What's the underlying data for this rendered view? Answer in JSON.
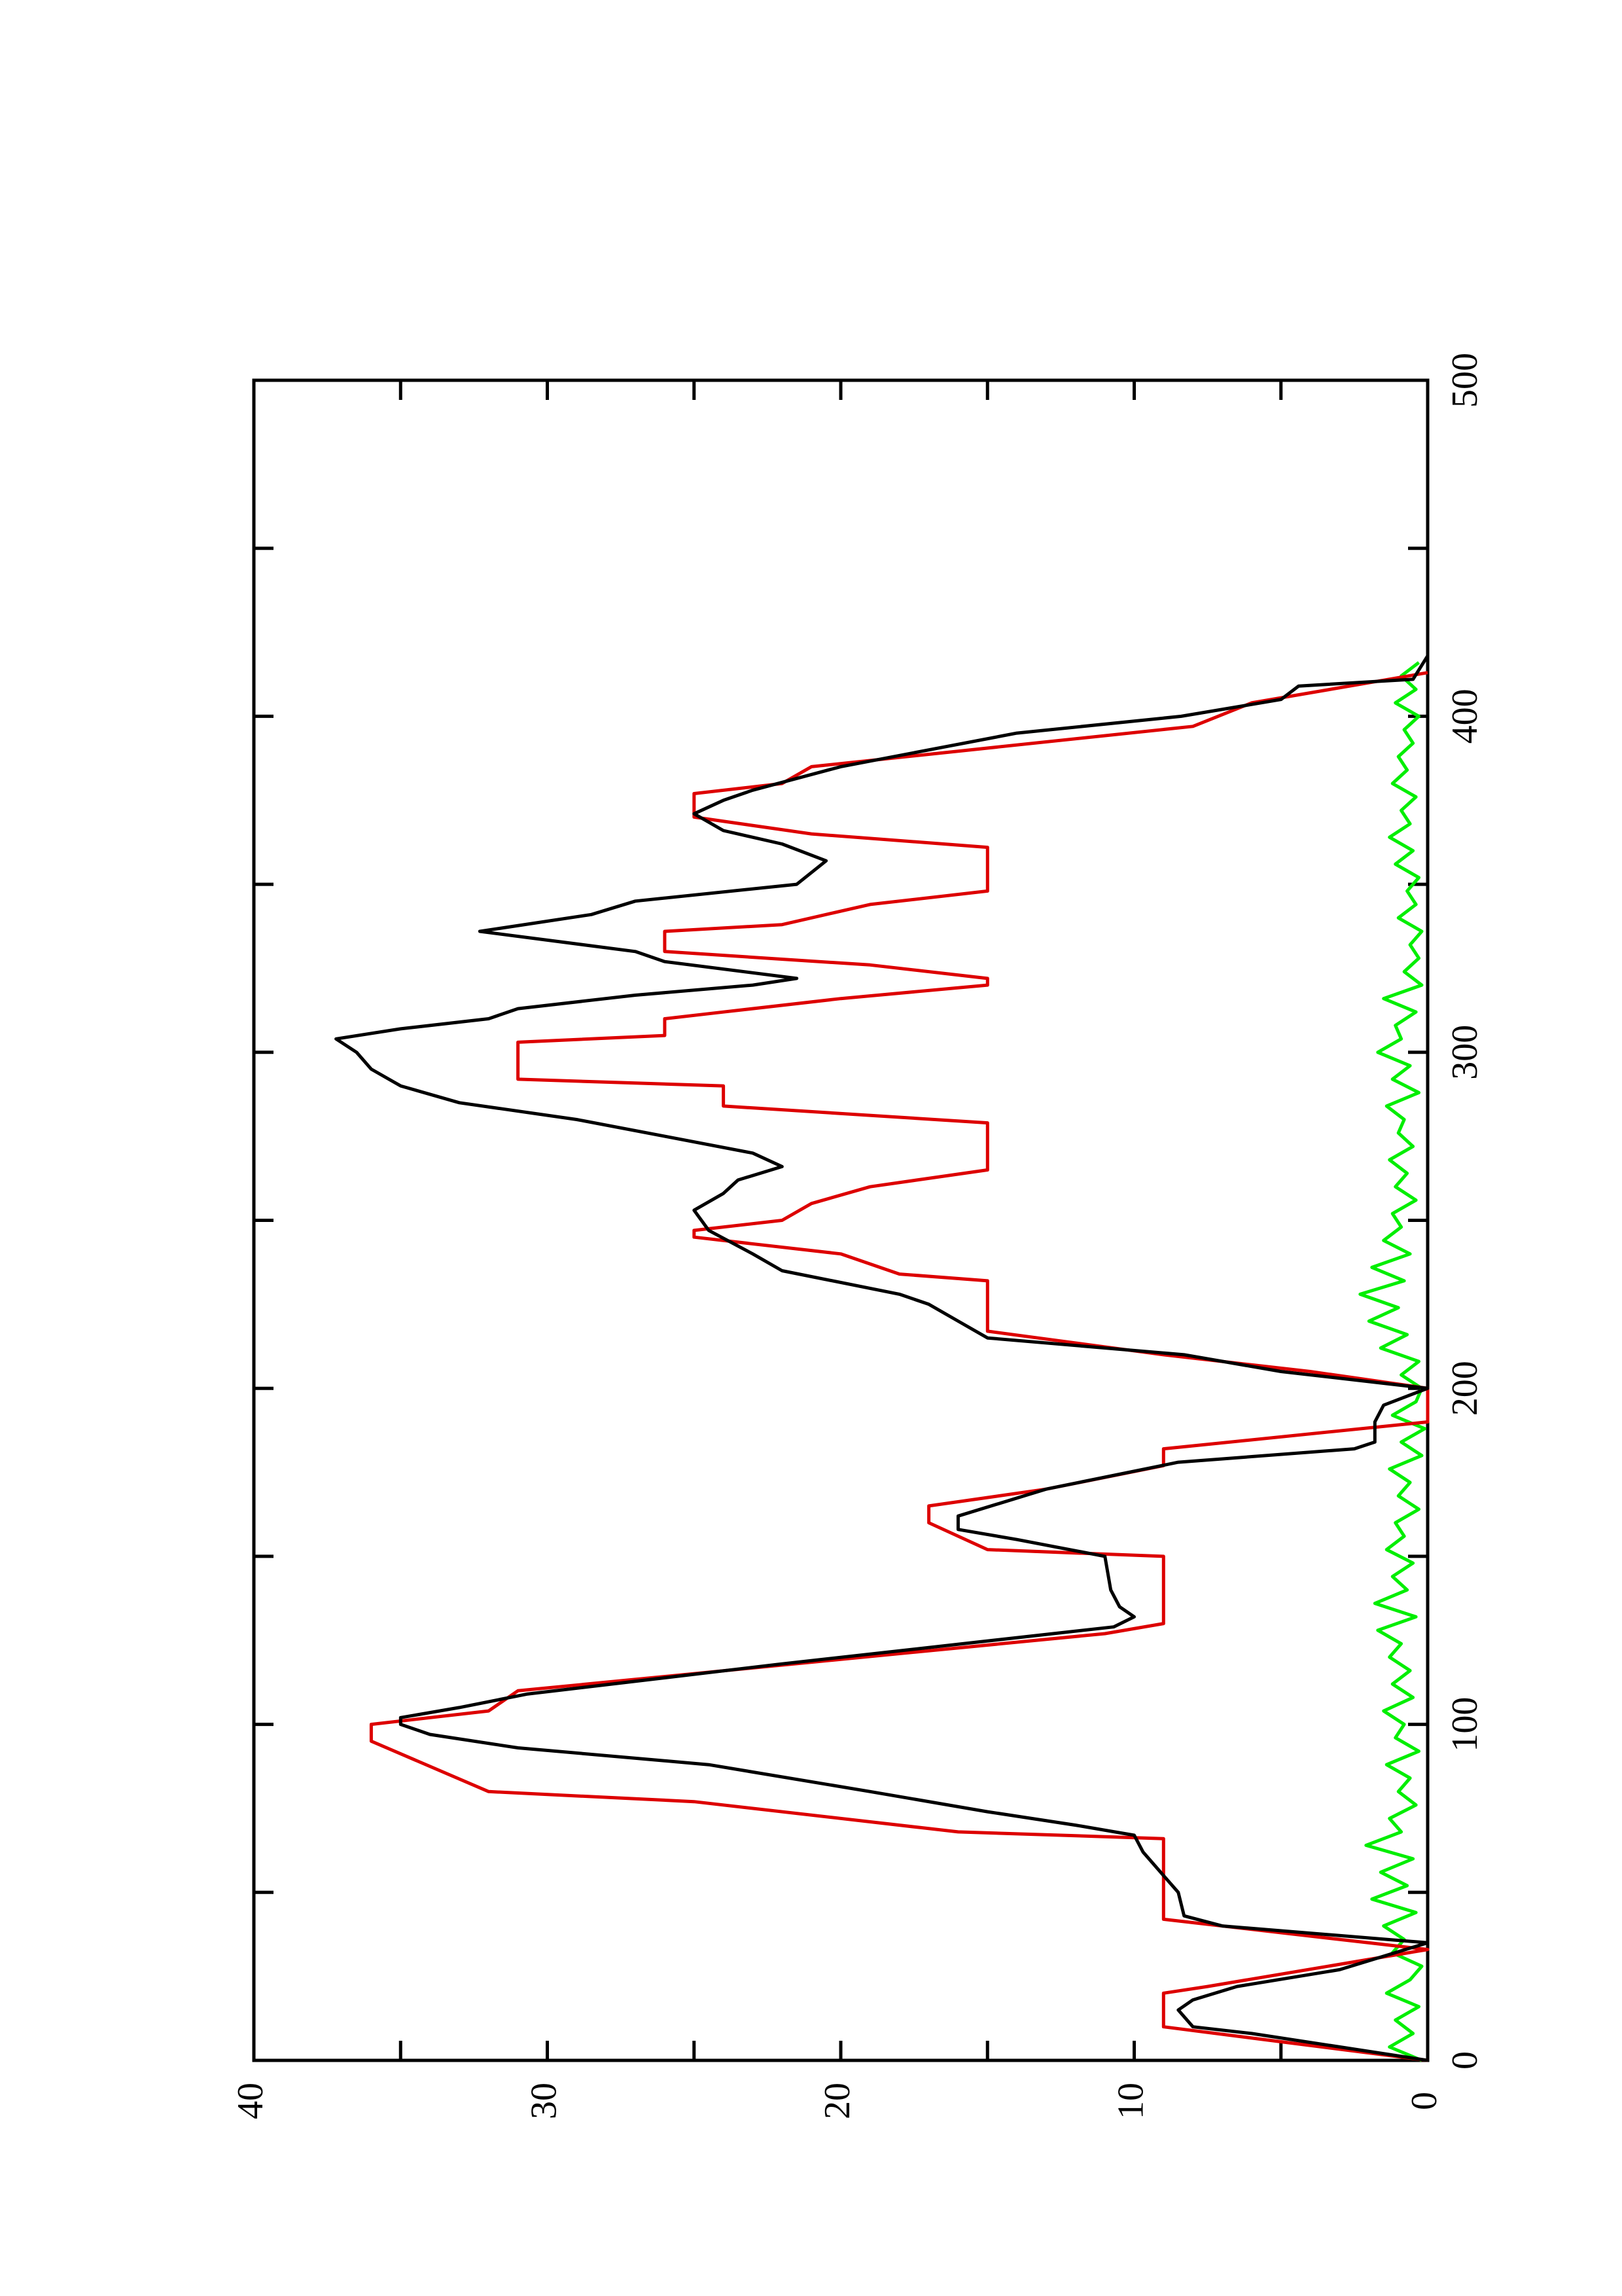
{
  "chart_data": {
    "type": "line",
    "xlim": [
      0,
      500
    ],
    "xticks": [
      0,
      100,
      200,
      300,
      400,
      500
    ],
    "xminorticks": [
      50,
      150,
      250,
      350,
      450
    ],
    "ylim": [
      0,
      40
    ],
    "yticks": [
      0,
      10,
      20,
      30,
      40
    ],
    "yminorticks": [
      5,
      15,
      25,
      35
    ],
    "series": [
      {
        "color": "#00ee00",
        "x": [
          0,
          4,
          8,
          12,
          16,
          20,
          24,
          28,
          32,
          36,
          40,
          44,
          48,
          52,
          56,
          60,
          64,
          68,
          72,
          76,
          80,
          84,
          88,
          92,
          96,
          100,
          104,
          108,
          112,
          116,
          120,
          124,
          128,
          132,
          136,
          140,
          144,
          148,
          152,
          156,
          160,
          164,
          168,
          172,
          176,
          180,
          184,
          188,
          192,
          196,
          200,
          204,
          208,
          212,
          216,
          220,
          224,
          228,
          232,
          236,
          240,
          244,
          248,
          252,
          256,
          260,
          264,
          268,
          272,
          276,
          280,
          284,
          288,
          292,
          296,
          300,
          304,
          308,
          312,
          316,
          320,
          324,
          328,
          332,
          336,
          340,
          344,
          348,
          352,
          356,
          360,
          364,
          368,
          372,
          376,
          380,
          384,
          388,
          392,
          396,
          400,
          404,
          408,
          412,
          416
        ],
        "values": [
          0.2,
          1.3,
          0.5,
          1.1,
          0.3,
          1.4,
          0.6,
          0.2,
          1.2,
          0.8,
          1.5,
          0.4,
          1.9,
          0.7,
          1.6,
          0.5,
          2.1,
          0.9,
          1.3,
          0.4,
          1.0,
          0.6,
          1.4,
          0.3,
          1.1,
          0.8,
          1.5,
          0.5,
          1.2,
          0.6,
          1.3,
          0.9,
          1.7,
          0.4,
          1.8,
          0.7,
          1.2,
          0.5,
          1.4,
          0.8,
          1.1,
          0.3,
          1.0,
          0.6,
          1.3,
          0.2,
          0.9,
          0.1,
          1.2,
          0.4,
          0.2,
          0.9,
          0.3,
          1.6,
          0.7,
          2.0,
          1.0,
          2.3,
          0.8,
          1.9,
          0.6,
          1.5,
          0.9,
          1.2,
          0.4,
          1.1,
          0.7,
          1.3,
          0.5,
          1.0,
          0.8,
          1.4,
          0.3,
          1.2,
          0.6,
          1.7,
          0.9,
          1.1,
          0.4,
          1.5,
          0.2,
          0.8,
          0.3,
          0.6,
          0.2,
          1.0,
          0.4,
          0.7,
          0.3,
          1.1,
          0.5,
          1.3,
          0.6,
          0.9,
          0.4,
          1.2,
          0.7,
          1.0,
          0.5,
          0.8,
          0.3,
          1.1,
          0.4,
          0.9,
          0.3
        ]
      },
      {
        "color": "#dd0000",
        "x": [
          0,
          10,
          20,
          22,
          33,
          42,
          66,
          68,
          77,
          80,
          95,
          100,
          104,
          110,
          127,
          130,
          150,
          152,
          160,
          165,
          170,
          177,
          182,
          190,
          200,
          205,
          210,
          217,
          232,
          234,
          240,
          245,
          247,
          250,
          255,
          260,
          265,
          268,
          279,
          284,
          290,
          292,
          303,
          305,
          310,
          312,
          316,
          320,
          322,
          326,
          330,
          336,
          338,
          344,
          348,
          361,
          365,
          370,
          377,
          380,
          385,
          397,
          404,
          413
        ],
        "values": [
          0,
          9,
          9,
          7.5,
          0,
          9,
          9,
          16,
          25,
          32,
          36,
          36,
          32,
          31,
          11,
          9,
          9,
          15,
          17,
          17,
          13,
          9,
          9,
          0,
          0,
          4,
          9,
          15,
          15,
          18,
          20,
          25,
          25,
          22,
          21,
          19,
          15,
          15,
          15,
          24,
          24,
          31,
          31,
          26,
          26,
          24,
          20,
          15,
          15,
          19,
          26,
          26,
          22,
          19,
          15,
          15,
          21,
          25,
          25,
          22,
          21,
          8,
          6,
          0
        ]
      },
      {
        "color": "#000000",
        "x": [
          0,
          8,
          10,
          15,
          18,
          22,
          27,
          35,
          40,
          43,
          50,
          55,
          62,
          67,
          70,
          74,
          80,
          88,
          93,
          97,
          100,
          102,
          105,
          109,
          118,
          129,
          132,
          135,
          140,
          150,
          155,
          158,
          162,
          170,
          178,
          182,
          184,
          190,
          195,
          200,
          205,
          210,
          215,
          220,
          225,
          228,
          235,
          240,
          247,
          253,
          258,
          262,
          266,
          270,
          275,
          280,
          285,
          290,
          295,
          300,
          304,
          307,
          310,
          313,
          317,
          320,
          322,
          327,
          330,
          336,
          341,
          345,
          350,
          357,
          362,
          366,
          371,
          375,
          378,
          385,
          395,
          400,
          405,
          409,
          411,
          418
        ],
        "values": [
          0,
          6,
          8,
          8.5,
          8,
          6.5,
          3,
          0,
          7,
          8.3,
          8.5,
          9,
          9.7,
          10,
          12,
          15,
          19,
          24.5,
          31,
          34,
          35,
          35,
          33,
          30.7,
          22,
          10.7,
          10,
          10.5,
          10.8,
          11,
          14,
          16,
          16,
          13,
          8.5,
          2.5,
          1.8,
          1.8,
          1.5,
          0,
          5,
          8.3,
          15,
          16,
          17,
          18,
          22,
          23,
          24.5,
          25,
          24,
          23.5,
          22,
          23,
          26,
          29,
          33,
          35,
          36,
          36.5,
          37.2,
          35,
          32,
          31,
          27,
          23,
          21.5,
          26,
          27,
          32.3,
          28.5,
          27,
          21.5,
          20.5,
          22,
          24,
          25,
          24,
          23,
          20,
          14,
          8.4,
          5,
          4.4,
          0.5,
          0
        ]
      }
    ]
  }
}
